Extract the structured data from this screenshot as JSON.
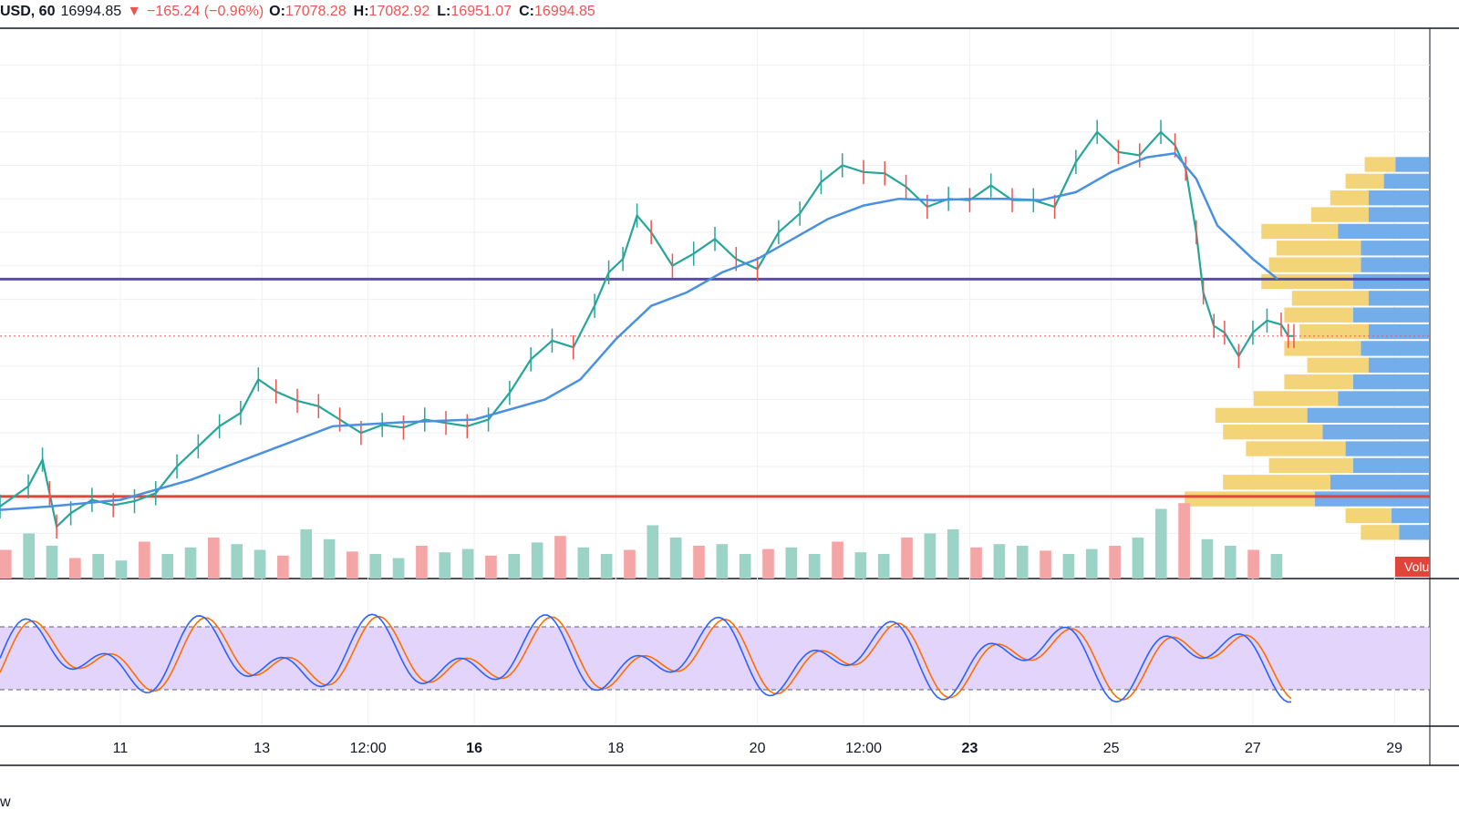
{
  "header": {
    "symbol": "USD, 60",
    "price": "16994.85",
    "change": "−165.24 (−0.96%)",
    "open_label": "O:",
    "open": "17078.28",
    "high_label": "H:",
    "high": "17082.92",
    "low_label": "L:",
    "low": "16951.07",
    "close_label": "C:",
    "close": "16994.85"
  },
  "footer": {
    "watermark_fragment": "w"
  },
  "volume_profile": {
    "label": "Volu",
    "label_color": "#e0443a"
  },
  "chart_data": {
    "type": "line",
    "title": "",
    "x_ticks": [
      {
        "label": "11",
        "pos": 1
      },
      {
        "label": "13",
        "pos": 3
      },
      {
        "label": "12:00",
        "pos": 4.5
      },
      {
        "label": "16",
        "pos": 6
      },
      {
        "label": "18",
        "pos": 8
      },
      {
        "label": "20",
        "pos": 10
      },
      {
        "label": "12:00",
        "pos": 11.5
      },
      {
        "label": "23",
        "pos": 13
      },
      {
        "label": "25",
        "pos": 15
      },
      {
        "label": "27",
        "pos": 17
      },
      {
        "label": "29",
        "pos": 19
      }
    ],
    "bold_ticks": [
      "16",
      "23"
    ],
    "x_range": [
      -0.7,
      19.5
    ],
    "price_range": [
      16680,
      17440
    ],
    "price_series": [
      [
        -0.7,
        16740
      ],
      [
        -0.3,
        16770
      ],
      [
        -0.1,
        16810
      ],
      [
        0,
        16760
      ],
      [
        0.1,
        16710
      ],
      [
        0.3,
        16730
      ],
      [
        0.6,
        16750
      ],
      [
        0.9,
        16742
      ],
      [
        1.2,
        16748
      ],
      [
        1.5,
        16760
      ],
      [
        1.8,
        16800
      ],
      [
        2.1,
        16830
      ],
      [
        2.4,
        16860
      ],
      [
        2.7,
        16880
      ],
      [
        2.95,
        16930
      ],
      [
        3.2,
        16912
      ],
      [
        3.5,
        16898
      ],
      [
        3.8,
        16890
      ],
      [
        4.1,
        16870
      ],
      [
        4.4,
        16850
      ],
      [
        4.7,
        16862
      ],
      [
        5.0,
        16858
      ],
      [
        5.3,
        16870
      ],
      [
        5.6,
        16865
      ],
      [
        5.9,
        16860
      ],
      [
        6.2,
        16870
      ],
      [
        6.5,
        16910
      ],
      [
        6.8,
        16960
      ],
      [
        7.1,
        16988
      ],
      [
        7.4,
        16978
      ],
      [
        7.7,
        17040
      ],
      [
        7.9,
        17090
      ],
      [
        8.1,
        17110
      ],
      [
        8.3,
        17175
      ],
      [
        8.5,
        17150
      ],
      [
        8.8,
        17100
      ],
      [
        9.1,
        17118
      ],
      [
        9.4,
        17140
      ],
      [
        9.7,
        17110
      ],
      [
        10.0,
        17095
      ],
      [
        10.3,
        17150
      ],
      [
        10.6,
        17178
      ],
      [
        10.9,
        17225
      ],
      [
        11.2,
        17250
      ],
      [
        11.5,
        17240
      ],
      [
        11.8,
        17238
      ],
      [
        12.1,
        17218
      ],
      [
        12.4,
        17188
      ],
      [
        12.7,
        17200
      ],
      [
        13.0,
        17198
      ],
      [
        13.3,
        17220
      ],
      [
        13.6,
        17198
      ],
      [
        13.9,
        17198
      ],
      [
        14.2,
        17188
      ],
      [
        14.5,
        17255
      ],
      [
        14.8,
        17300
      ],
      [
        15.1,
        17270
      ],
      [
        15.4,
        17265
      ],
      [
        15.7,
        17300
      ],
      [
        15.9,
        17280
      ],
      [
        16.05,
        17245
      ],
      [
        16.2,
        17150
      ],
      [
        16.3,
        17060
      ],
      [
        16.45,
        17010
      ],
      [
        16.6,
        17000
      ],
      [
        16.8,
        16965
      ],
      [
        17.0,
        17000
      ],
      [
        17.2,
        17018
      ],
      [
        17.4,
        17012
      ],
      [
        17.5,
        16995
      ],
      [
        17.58,
        16994.85
      ]
    ],
    "ma_series": [
      [
        -0.7,
        16735
      ],
      [
        0,
        16740
      ],
      [
        1,
        16750
      ],
      [
        2,
        16780
      ],
      [
        3,
        16820
      ],
      [
        4,
        16860
      ],
      [
        5,
        16866
      ],
      [
        6,
        16870
      ],
      [
        7,
        16900
      ],
      [
        7.5,
        16930
      ],
      [
        8,
        16990
      ],
      [
        8.5,
        17040
      ],
      [
        9,
        17060
      ],
      [
        9.5,
        17090
      ],
      [
        10,
        17110
      ],
      [
        10.5,
        17140
      ],
      [
        11,
        17170
      ],
      [
        11.5,
        17190
      ],
      [
        12,
        17200
      ],
      [
        12.5,
        17198
      ],
      [
        13,
        17200
      ],
      [
        13.5,
        17200
      ],
      [
        14,
        17198
      ],
      [
        14.5,
        17210
      ],
      [
        15,
        17240
      ],
      [
        15.5,
        17262
      ],
      [
        15.9,
        17268
      ],
      [
        16.2,
        17230
      ],
      [
        16.5,
        17160
      ],
      [
        17,
        17110
      ],
      [
        17.35,
        17080
      ]
    ],
    "horizontal_levels": [
      {
        "price": 17080,
        "color": "#5b4bb0"
      },
      {
        "price": 16755,
        "color": "#e0443a"
      }
    ],
    "last_price": {
      "price": 16994.85,
      "color": "#ef5350"
    },
    "volume_series": [
      0.35,
      0.55,
      0.4,
      0.25,
      0.3,
      0.22,
      0.45,
      0.3,
      0.38,
      0.5,
      0.42,
      0.35,
      0.28,
      0.6,
      0.48,
      0.33,
      0.3,
      0.25,
      0.4,
      0.32,
      0.36,
      0.28,
      0.3,
      0.44,
      0.52,
      0.38,
      0.3,
      0.35,
      0.65,
      0.5,
      0.4,
      0.42,
      0.3,
      0.36,
      0.38,
      0.3,
      0.45,
      0.32,
      0.3,
      0.5,
      0.55,
      0.6,
      0.38,
      0.42,
      0.4,
      0.34,
      0.3,
      0.36,
      0.4,
      0.5,
      0.85,
      0.92,
      0.48,
      0.4,
      0.35,
      0.3
    ],
    "volume_profile": {
      "price_bins": [
        17425,
        17400,
        17375,
        17350,
        17325,
        17300,
        17275,
        17250,
        17225,
        17200,
        17175,
        17150,
        17125,
        17100,
        17075,
        17050,
        17025,
        17000,
        16975,
        16950,
        16925,
        16900,
        16875,
        16850,
        16825,
        16800,
        16775,
        16750,
        16725,
        16700
      ],
      "up": [
        0,
        0,
        0,
        0,
        0,
        0,
        0,
        0.08,
        0.1,
        0.1,
        0.15,
        0.2,
        0.22,
        0.24,
        0.24,
        0.2,
        0.18,
        0.18,
        0.2,
        0.16,
        0.18,
        0.22,
        0.24,
        0.26,
        0.26,
        0.22,
        0.28,
        0.34,
        0.12,
        0.1
      ],
      "down": [
        0,
        0,
        0,
        0,
        0,
        0,
        0,
        0.09,
        0.12,
        0.16,
        0.16,
        0.24,
        0.18,
        0.18,
        0.2,
        0.16,
        0.2,
        0.16,
        0.18,
        0.16,
        0.2,
        0.24,
        0.32,
        0.28,
        0.22,
        0.2,
        0.26,
        0.3,
        0.1,
        0.08
      ]
    },
    "oscillator": {
      "range": [
        0,
        100
      ],
      "upper_band": 80,
      "lower_band": 20,
      "fill_color": "#e3d4fb"
    }
  }
}
